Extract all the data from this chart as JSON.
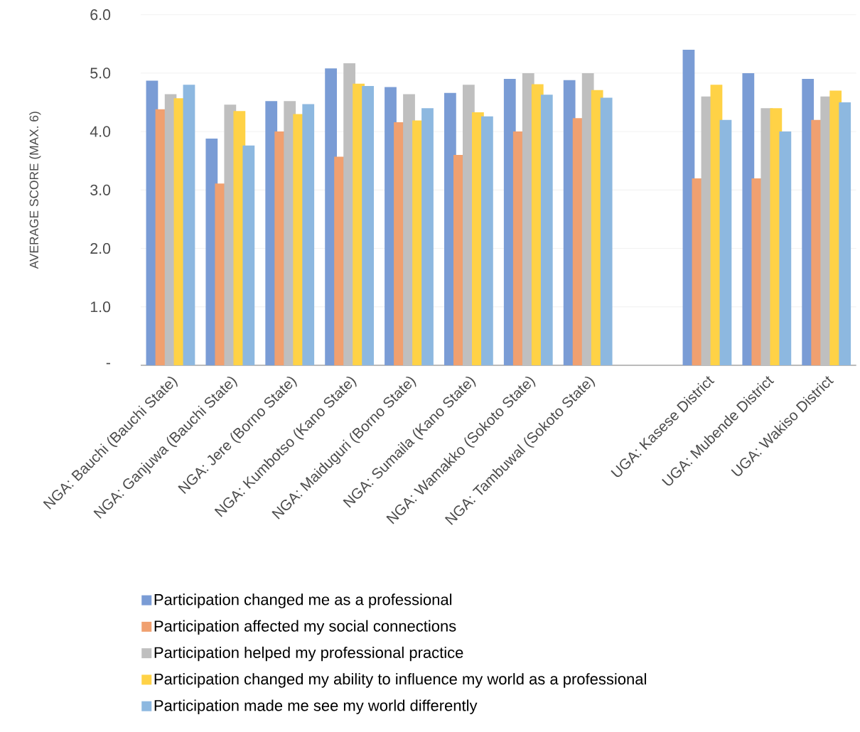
{
  "chart_data": {
    "type": "bar",
    "ylabel": "AVERAGE SCORE (MAX. 6)",
    "categories": [
      "NGA: Bauchi (Bauchi State)",
      "NGA: Ganjuwa (Bauchi State)",
      "NGA: Jere (Borno State)",
      "NGA: Kumbotso (Kano State)",
      "NGA: Maiduguri (Borno State)",
      "NGA: Sumaila (Kano State)",
      "NGA: Wamakko (Sokoto State)",
      "NGA: Tambuwal (Sokoto State)",
      null,
      "UGA: Kasese District",
      "UGA: Mubende District",
      "UGA: Wakiso District"
    ],
    "series": [
      {
        "name": "Participation changed me as a professional",
        "color": "#7a9cd5",
        "values": [
          4.87,
          3.88,
          4.52,
          5.08,
          4.76,
          4.66,
          4.9,
          4.88,
          null,
          5.4,
          5.0,
          4.9
        ]
      },
      {
        "name": "Participation affected my social connections",
        "color": "#f0a070",
        "values": [
          4.38,
          3.11,
          4.0,
          3.57,
          4.16,
          3.6,
          4.0,
          4.23,
          null,
          3.2,
          3.2,
          4.2
        ]
      },
      {
        "name": "Participation helped my professional practice",
        "color": "#bfbfbf",
        "values": [
          4.64,
          4.46,
          4.52,
          5.17,
          4.64,
          4.8,
          5.0,
          5.0,
          null,
          4.6,
          4.4,
          4.6
        ]
      },
      {
        "name": "Participation changed my ability to influence my world as a professional",
        "color": "#ffd246",
        "values": [
          4.57,
          4.35,
          4.3,
          4.82,
          4.19,
          4.33,
          4.81,
          4.71,
          null,
          4.8,
          4.4,
          4.7
        ]
      },
      {
        "name": "Participation made me see my world differently",
        "color": "#8db8e0",
        "values": [
          4.8,
          3.76,
          4.47,
          4.78,
          4.4,
          4.26,
          4.63,
          4.58,
          null,
          4.2,
          4.0,
          4.5
        ]
      }
    ],
    "ylim": [
      0,
      6
    ],
    "yticks": [
      {
        "value": 0,
        "label": "-"
      },
      {
        "value": 1,
        "label": "1.0"
      },
      {
        "value": 2,
        "label": "2.0"
      },
      {
        "value": 3,
        "label": "3.0"
      },
      {
        "value": 4,
        "label": "4.0"
      },
      {
        "value": 5,
        "label": "5.0"
      },
      {
        "value": 6,
        "label": "6.0"
      }
    ],
    "grid": "y",
    "legend": "bottom"
  }
}
